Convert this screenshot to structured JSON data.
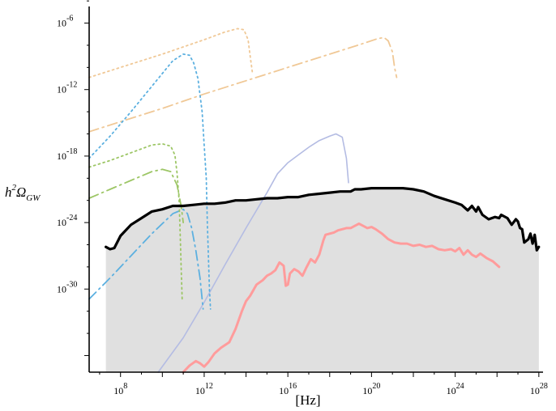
{
  "chart_data": {
    "type": "line",
    "title": "",
    "xlabel": "[Hz]",
    "ylabel": "h^2 Ω_GW",
    "x_scale": "log10",
    "y_scale": "log10",
    "xlim_log10": [
      6.5,
      28.2
    ],
    "ylim_log10": [
      -37.5,
      -4.5
    ],
    "x_tick_labels": [
      {
        "base": "10",
        "exp": "8",
        "log": 8
      },
      {
        "base": "10",
        "exp": "12",
        "log": 12
      },
      {
        "base": "10",
        "exp": "16",
        "log": 16
      },
      {
        "base": "10",
        "exp": "20",
        "log": 20
      },
      {
        "base": "10",
        "exp": "24",
        "log": 24
      },
      {
        "base": "10",
        "exp": "28",
        "log": 28
      }
    ],
    "y_tick_labels": [
      {
        "base": "10",
        "exp": "-6",
        "log": -6
      },
      {
        "base": "10",
        "exp": "-12",
        "log": -12
      },
      {
        "base": "10",
        "exp": "-18",
        "log": -18
      },
      {
        "base": "10",
        "exp": "-24",
        "log": -24
      },
      {
        "base": "10",
        "exp": "-30",
        "log": -30
      }
    ],
    "grid": false,
    "legend": "none",
    "shaded_region": {
      "color": "#e0e0e0",
      "x_log": [
        7.3,
        28.0
      ],
      "y_bottom_log": -37.5
    },
    "series": [
      {
        "id": "upper-bound",
        "color": "#000000",
        "style": "solid",
        "width": 3.2,
        "points": [
          [
            7.3,
            -26.2
          ],
          [
            7.5,
            -26.4
          ],
          [
            7.7,
            -26.3
          ],
          [
            8.0,
            -25.2
          ],
          [
            8.5,
            -24.2
          ],
          [
            9.0,
            -23.6
          ],
          [
            9.5,
            -23.0
          ],
          [
            10.0,
            -22.8
          ],
          [
            10.5,
            -22.5
          ],
          [
            11.0,
            -22.5
          ],
          [
            11.5,
            -22.4
          ],
          [
            12.0,
            -22.3
          ],
          [
            12.5,
            -22.3
          ],
          [
            13.0,
            -22.2
          ],
          [
            13.5,
            -22.0
          ],
          [
            14.0,
            -22.0
          ],
          [
            14.5,
            -21.9
          ],
          [
            15.0,
            -21.8
          ],
          [
            15.5,
            -21.8
          ],
          [
            16.0,
            -21.7
          ],
          [
            16.5,
            -21.7
          ],
          [
            17.0,
            -21.5
          ],
          [
            17.5,
            -21.4
          ],
          [
            18.0,
            -21.3
          ],
          [
            18.5,
            -21.2
          ],
          [
            19.0,
            -21.2
          ],
          [
            19.2,
            -21.0
          ],
          [
            19.5,
            -21.0
          ],
          [
            20.0,
            -20.9
          ],
          [
            21.0,
            -20.9
          ],
          [
            21.5,
            -20.9
          ],
          [
            22.0,
            -21.0
          ],
          [
            22.5,
            -21.2
          ],
          [
            23.0,
            -21.6
          ],
          [
            23.5,
            -21.9
          ],
          [
            24.0,
            -22.2
          ],
          [
            24.3,
            -22.4
          ],
          [
            24.6,
            -22.9
          ],
          [
            24.8,
            -22.5
          ],
          [
            25.0,
            -23.0
          ],
          [
            25.1,
            -22.6
          ],
          [
            25.3,
            -23.3
          ],
          [
            25.6,
            -23.7
          ],
          [
            25.9,
            -23.5
          ],
          [
            26.1,
            -23.6
          ],
          [
            26.2,
            -23.3
          ],
          [
            26.5,
            -23.6
          ],
          [
            26.7,
            -24.2
          ],
          [
            26.9,
            -23.7
          ],
          [
            27.0,
            -23.9
          ],
          [
            27.1,
            -24.5
          ],
          [
            27.2,
            -24.6
          ],
          [
            27.3,
            -25.8
          ],
          [
            27.5,
            -25.5
          ],
          [
            27.6,
            -25.0
          ],
          [
            27.7,
            -25.9
          ],
          [
            27.8,
            -25.1
          ],
          [
            27.9,
            -26.5
          ],
          [
            28.0,
            -26.2
          ]
        ]
      },
      {
        "id": "pink-solid",
        "color": "#ff9c9c",
        "style": "solid",
        "width": 3,
        "points": [
          [
            11.0,
            -37.5
          ],
          [
            11.3,
            -36.9
          ],
          [
            11.6,
            -36.5
          ],
          [
            11.8,
            -36.7
          ],
          [
            12.0,
            -37.0
          ],
          [
            12.2,
            -36.6
          ],
          [
            12.5,
            -35.8
          ],
          [
            12.8,
            -35.3
          ],
          [
            13.2,
            -34.8
          ],
          [
            13.5,
            -33.6
          ],
          [
            13.8,
            -32.0
          ],
          [
            14.0,
            -31.1
          ],
          [
            14.2,
            -30.6
          ],
          [
            14.5,
            -29.6
          ],
          [
            14.8,
            -29.2
          ],
          [
            15.0,
            -28.8
          ],
          [
            15.2,
            -28.6
          ],
          [
            15.4,
            -28.3
          ],
          [
            15.6,
            -27.6
          ],
          [
            15.8,
            -27.9
          ],
          [
            15.9,
            -29.7
          ],
          [
            16.0,
            -29.6
          ],
          [
            16.1,
            -28.6
          ],
          [
            16.3,
            -28.2
          ],
          [
            16.5,
            -28.4
          ],
          [
            16.7,
            -28.8
          ],
          [
            16.9,
            -28.0
          ],
          [
            17.1,
            -27.3
          ],
          [
            17.3,
            -27.6
          ],
          [
            17.5,
            -26.9
          ],
          [
            17.7,
            -25.6
          ],
          [
            17.8,
            -25.1
          ],
          [
            18.0,
            -25.0
          ],
          [
            18.2,
            -24.9
          ],
          [
            18.4,
            -24.7
          ],
          [
            18.6,
            -24.6
          ],
          [
            18.8,
            -24.5
          ],
          [
            19.0,
            -24.5
          ],
          [
            19.2,
            -24.3
          ],
          [
            19.4,
            -24.1
          ],
          [
            19.6,
            -24.3
          ],
          [
            19.8,
            -24.5
          ],
          [
            20.0,
            -24.4
          ],
          [
            20.2,
            -24.6
          ],
          [
            20.5,
            -25.0
          ],
          [
            20.8,
            -25.5
          ],
          [
            21.1,
            -25.8
          ],
          [
            21.4,
            -25.9
          ],
          [
            21.7,
            -25.9
          ],
          [
            22.0,
            -26.1
          ],
          [
            22.3,
            -26.0
          ],
          [
            22.6,
            -26.2
          ],
          [
            22.9,
            -26.1
          ],
          [
            23.2,
            -26.4
          ],
          [
            23.5,
            -26.5
          ],
          [
            23.8,
            -26.4
          ],
          [
            24.0,
            -26.6
          ],
          [
            24.2,
            -26.3
          ],
          [
            24.4,
            -26.9
          ],
          [
            24.6,
            -26.5
          ],
          [
            24.8,
            -26.9
          ],
          [
            25.0,
            -27.1
          ],
          [
            25.2,
            -26.8
          ],
          [
            25.5,
            -27.2
          ],
          [
            25.8,
            -27.5
          ],
          [
            26.1,
            -28.0
          ]
        ]
      },
      {
        "id": "lavender-solid",
        "color": "#b4bce3",
        "style": "solid",
        "width": 1.6,
        "points": [
          [
            9.8,
            -37.5
          ],
          [
            11.0,
            -34.4
          ],
          [
            12.0,
            -31.2
          ],
          [
            13.0,
            -27.8
          ],
          [
            14.0,
            -24.5
          ],
          [
            15.0,
            -21.3
          ],
          [
            15.5,
            -19.6
          ],
          [
            16.0,
            -18.6
          ],
          [
            16.5,
            -17.9
          ],
          [
            17.0,
            -17.2
          ],
          [
            17.5,
            -16.6
          ],
          [
            18.0,
            -16.2
          ],
          [
            18.3,
            -16.0
          ],
          [
            18.6,
            -16.3
          ],
          [
            18.8,
            -18.2
          ],
          [
            18.9,
            -20.4
          ]
        ]
      },
      {
        "id": "tan-dotted",
        "color": "#f0c896",
        "style": "dotted",
        "width": 1.8,
        "points": [
          [
            6.5,
            -10.9
          ],
          [
            8.0,
            -10.0
          ],
          [
            10.0,
            -8.8
          ],
          [
            12.0,
            -7.5
          ],
          [
            13.0,
            -6.8
          ],
          [
            13.6,
            -6.5
          ],
          [
            13.9,
            -6.6
          ],
          [
            14.1,
            -7.5
          ],
          [
            14.2,
            -9.0
          ],
          [
            14.3,
            -10.4
          ]
        ]
      },
      {
        "id": "tan-dashdot",
        "color": "#f0c896",
        "style": "dashdot",
        "width": 1.8,
        "points": [
          [
            6.5,
            -15.8
          ],
          [
            8.0,
            -14.9
          ],
          [
            10.0,
            -13.7
          ],
          [
            12.0,
            -12.4
          ],
          [
            14.0,
            -11.2
          ],
          [
            16.0,
            -10.0
          ],
          [
            18.0,
            -8.8
          ],
          [
            19.5,
            -7.9
          ],
          [
            20.3,
            -7.4
          ],
          [
            20.6,
            -7.3
          ],
          [
            20.8,
            -7.6
          ],
          [
            21.0,
            -8.6
          ],
          [
            21.1,
            -10.0
          ],
          [
            21.2,
            -10.9
          ]
        ]
      },
      {
        "id": "blue-dotted",
        "color": "#5cb0e0",
        "style": "dotted",
        "width": 1.8,
        "points": [
          [
            6.5,
            -18.2
          ],
          [
            7.5,
            -16.2
          ],
          [
            8.5,
            -14.0
          ],
          [
            9.5,
            -11.7
          ],
          [
            10.5,
            -9.4
          ],
          [
            11.0,
            -8.8
          ],
          [
            11.3,
            -8.9
          ],
          [
            11.5,
            -9.6
          ],
          [
            11.7,
            -11.0
          ],
          [
            11.9,
            -14.0
          ],
          [
            12.0,
            -17.0
          ],
          [
            12.1,
            -20.0
          ],
          [
            12.15,
            -24.0
          ],
          [
            12.2,
            -27.0
          ],
          [
            12.25,
            -30.0
          ],
          [
            12.3,
            -31.8
          ]
        ]
      },
      {
        "id": "blue-dashdot",
        "color": "#5cb0e0",
        "style": "dashdot",
        "width": 1.8,
        "points": [
          [
            6.5,
            -30.9
          ],
          [
            7.5,
            -29.0
          ],
          [
            8.5,
            -27.0
          ],
          [
            9.5,
            -25.0
          ],
          [
            10.5,
            -23.2
          ],
          [
            11.0,
            -22.8
          ],
          [
            11.2,
            -23.2
          ],
          [
            11.4,
            -24.5
          ],
          [
            11.6,
            -26.5
          ],
          [
            11.8,
            -29.0
          ],
          [
            11.95,
            -31.8
          ]
        ]
      },
      {
        "id": "green-dotted",
        "color": "#9dc666",
        "style": "dotted",
        "width": 1.8,
        "points": [
          [
            6.5,
            -19.0
          ],
          [
            7.5,
            -18.4
          ],
          [
            8.5,
            -17.7
          ],
          [
            9.5,
            -17.0
          ],
          [
            10.0,
            -16.9
          ],
          [
            10.4,
            -17.1
          ],
          [
            10.6,
            -17.9
          ],
          [
            10.7,
            -19.5
          ],
          [
            10.8,
            -22.0
          ],
          [
            10.85,
            -25.0
          ],
          [
            10.9,
            -28.0
          ],
          [
            10.95,
            -31.0
          ]
        ]
      },
      {
        "id": "green-dashdot",
        "color": "#9dc666",
        "style": "dashdot",
        "width": 1.8,
        "points": [
          [
            6.5,
            -21.8
          ],
          [
            7.5,
            -21.0
          ],
          [
            8.5,
            -20.2
          ],
          [
            9.5,
            -19.4
          ],
          [
            10.0,
            -19.2
          ],
          [
            10.4,
            -19.4
          ],
          [
            10.7,
            -20.6
          ],
          [
            10.9,
            -22.5
          ],
          [
            11.0,
            -24.0
          ]
        ]
      }
    ]
  }
}
